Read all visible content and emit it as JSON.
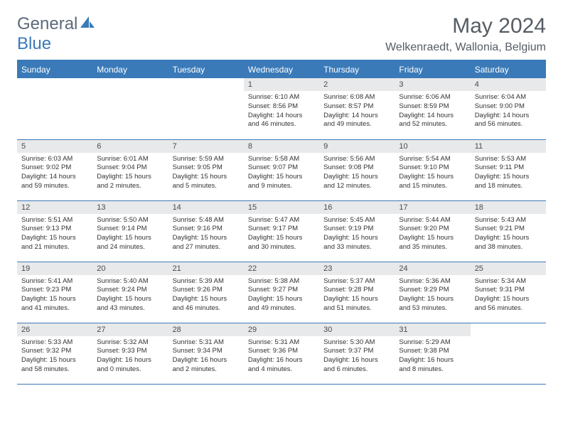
{
  "brand": {
    "part1": "General",
    "part2": "Blue"
  },
  "title": "May 2024",
  "location": "Welkenraedt, Wallonia, Belgium",
  "colors": {
    "header_bg": "#3a7ab8",
    "header_text": "#ffffff",
    "daynum_bg": "#e8e9ea",
    "border": "#3a7ab8",
    "title_color": "#555c63",
    "body_text": "#333333"
  },
  "daysOfWeek": [
    "Sunday",
    "Monday",
    "Tuesday",
    "Wednesday",
    "Thursday",
    "Friday",
    "Saturday"
  ],
  "weeks": [
    [
      {
        "empty": true
      },
      {
        "empty": true
      },
      {
        "empty": true
      },
      {
        "n": "1",
        "sr": "6:10 AM",
        "ss": "8:56 PM",
        "dl": "14 hours and 46 minutes."
      },
      {
        "n": "2",
        "sr": "6:08 AM",
        "ss": "8:57 PM",
        "dl": "14 hours and 49 minutes."
      },
      {
        "n": "3",
        "sr": "6:06 AM",
        "ss": "8:59 PM",
        "dl": "14 hours and 52 minutes."
      },
      {
        "n": "4",
        "sr": "6:04 AM",
        "ss": "9:00 PM",
        "dl": "14 hours and 56 minutes."
      }
    ],
    [
      {
        "n": "5",
        "sr": "6:03 AM",
        "ss": "9:02 PM",
        "dl": "14 hours and 59 minutes."
      },
      {
        "n": "6",
        "sr": "6:01 AM",
        "ss": "9:04 PM",
        "dl": "15 hours and 2 minutes."
      },
      {
        "n": "7",
        "sr": "5:59 AM",
        "ss": "9:05 PM",
        "dl": "15 hours and 5 minutes."
      },
      {
        "n": "8",
        "sr": "5:58 AM",
        "ss": "9:07 PM",
        "dl": "15 hours and 9 minutes."
      },
      {
        "n": "9",
        "sr": "5:56 AM",
        "ss": "9:08 PM",
        "dl": "15 hours and 12 minutes."
      },
      {
        "n": "10",
        "sr": "5:54 AM",
        "ss": "9:10 PM",
        "dl": "15 hours and 15 minutes."
      },
      {
        "n": "11",
        "sr": "5:53 AM",
        "ss": "9:11 PM",
        "dl": "15 hours and 18 minutes."
      }
    ],
    [
      {
        "n": "12",
        "sr": "5:51 AM",
        "ss": "9:13 PM",
        "dl": "15 hours and 21 minutes."
      },
      {
        "n": "13",
        "sr": "5:50 AM",
        "ss": "9:14 PM",
        "dl": "15 hours and 24 minutes."
      },
      {
        "n": "14",
        "sr": "5:48 AM",
        "ss": "9:16 PM",
        "dl": "15 hours and 27 minutes."
      },
      {
        "n": "15",
        "sr": "5:47 AM",
        "ss": "9:17 PM",
        "dl": "15 hours and 30 minutes."
      },
      {
        "n": "16",
        "sr": "5:45 AM",
        "ss": "9:19 PM",
        "dl": "15 hours and 33 minutes."
      },
      {
        "n": "17",
        "sr": "5:44 AM",
        "ss": "9:20 PM",
        "dl": "15 hours and 35 minutes."
      },
      {
        "n": "18",
        "sr": "5:43 AM",
        "ss": "9:21 PM",
        "dl": "15 hours and 38 minutes."
      }
    ],
    [
      {
        "n": "19",
        "sr": "5:41 AM",
        "ss": "9:23 PM",
        "dl": "15 hours and 41 minutes."
      },
      {
        "n": "20",
        "sr": "5:40 AM",
        "ss": "9:24 PM",
        "dl": "15 hours and 43 minutes."
      },
      {
        "n": "21",
        "sr": "5:39 AM",
        "ss": "9:26 PM",
        "dl": "15 hours and 46 minutes."
      },
      {
        "n": "22",
        "sr": "5:38 AM",
        "ss": "9:27 PM",
        "dl": "15 hours and 49 minutes."
      },
      {
        "n": "23",
        "sr": "5:37 AM",
        "ss": "9:28 PM",
        "dl": "15 hours and 51 minutes."
      },
      {
        "n": "24",
        "sr": "5:36 AM",
        "ss": "9:29 PM",
        "dl": "15 hours and 53 minutes."
      },
      {
        "n": "25",
        "sr": "5:34 AM",
        "ss": "9:31 PM",
        "dl": "15 hours and 56 minutes."
      }
    ],
    [
      {
        "n": "26",
        "sr": "5:33 AM",
        "ss": "9:32 PM",
        "dl": "15 hours and 58 minutes."
      },
      {
        "n": "27",
        "sr": "5:32 AM",
        "ss": "9:33 PM",
        "dl": "16 hours and 0 minutes."
      },
      {
        "n": "28",
        "sr": "5:31 AM",
        "ss": "9:34 PM",
        "dl": "16 hours and 2 minutes."
      },
      {
        "n": "29",
        "sr": "5:31 AM",
        "ss": "9:36 PM",
        "dl": "16 hours and 4 minutes."
      },
      {
        "n": "30",
        "sr": "5:30 AM",
        "ss": "9:37 PM",
        "dl": "16 hours and 6 minutes."
      },
      {
        "n": "31",
        "sr": "5:29 AM",
        "ss": "9:38 PM",
        "dl": "16 hours and 8 minutes."
      },
      {
        "empty": true
      }
    ]
  ],
  "labels": {
    "sunrise": "Sunrise:",
    "sunset": "Sunset:",
    "daylight": "Daylight:"
  }
}
